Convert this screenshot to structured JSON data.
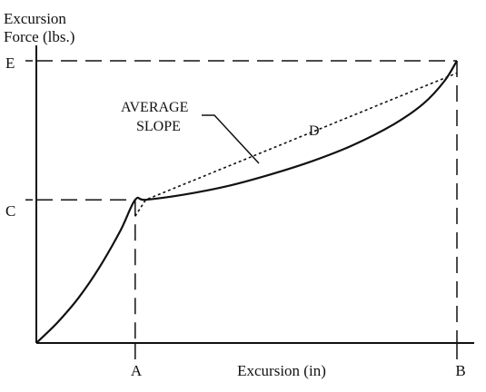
{
  "chart_data": {
    "type": "line",
    "title": "",
    "ylabel": "Excursion Force (lbs.)",
    "ylabel_lines": [
      "Excursion",
      "Force (lbs.)"
    ],
    "xlabel": "Excursion (in)",
    "x_ticks": [
      "A",
      "B"
    ],
    "y_ticks": [
      "C",
      "E"
    ],
    "annotations": {
      "average_slope_lines": [
        "AVERAGE",
        "SLOPE"
      ],
      "d_label": "D"
    },
    "series": [
      {
        "x": [
          0,
          0.05,
          0.1,
          0.15,
          0.2,
          0.235,
          0.26,
          0.35,
          0.45,
          0.55,
          0.65,
          0.75,
          0.85,
          0.92,
          0.97,
          1.0
        ],
        "y": [
          0,
          0.1,
          0.22,
          0.37,
          0.55,
          0.7,
          0.7,
          0.725,
          0.765,
          0.82,
          0.885,
          0.965,
          1.07,
          1.17,
          1.28,
          1.38
        ]
      },
      {
        "style": "dotted",
        "x": [
          0.235,
          0.26,
          1.0
        ],
        "y": [
          0.62,
          0.7,
          1.32
        ]
      }
    ],
    "xlim": [
      0,
      1.0
    ],
    "ylim": [
      0,
      1.38
    ],
    "grid": false,
    "legend": "none",
    "colors": {
      "ink": "#111111",
      "background": "#ffffff"
    }
  }
}
